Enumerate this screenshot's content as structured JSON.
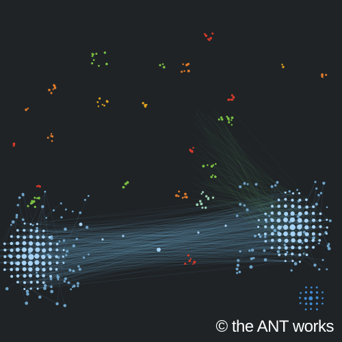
{
  "credit": "© the ANT works",
  "colors": {
    "background": "#1f2326",
    "cluster_blue": "#a7d3f5",
    "cluster_blue_dark": "#3f8ed8",
    "edge_blue": "#6fa3c8",
    "edge_green": "#5fae6a",
    "green": "#7bc043",
    "orange": "#e07b2a",
    "red": "#d43a2a",
    "yellow": "#e0a31f",
    "teal": "#9ed3b5"
  }
}
